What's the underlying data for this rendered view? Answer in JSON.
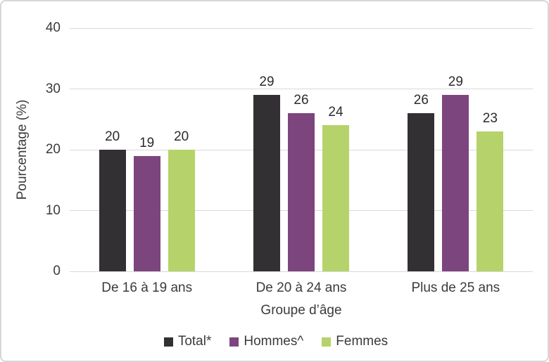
{
  "colors": {
    "grid": "#d9d9d9",
    "axis_line": "#d9d9d9",
    "border": "#d7d7d7",
    "text": "#3b3b3b"
  },
  "chart_data": {
    "type": "bar",
    "categories": [
      "De 16 à 19 ans",
      "De 20 à 24 ans",
      "Plus de 25 ans"
    ],
    "series": [
      {
        "name": "Total*",
        "color": "#333033",
        "values": [
          20,
          29,
          26
        ]
      },
      {
        "name": "Hommes^",
        "color": "#7d457e",
        "values": [
          19,
          26,
          29
        ]
      },
      {
        "name": "Femmes",
        "color": "#b5d36a",
        "values": [
          20,
          24,
          23
        ]
      }
    ],
    "title": "",
    "xlabel": "Groupe d’âge",
    "ylabel": "Pourcentage (%)",
    "ylim": [
      0,
      40
    ],
    "yticks": [
      0,
      10,
      20,
      30,
      40
    ],
    "grid": true,
    "data_labels": true,
    "legend_position": "bottom"
  }
}
